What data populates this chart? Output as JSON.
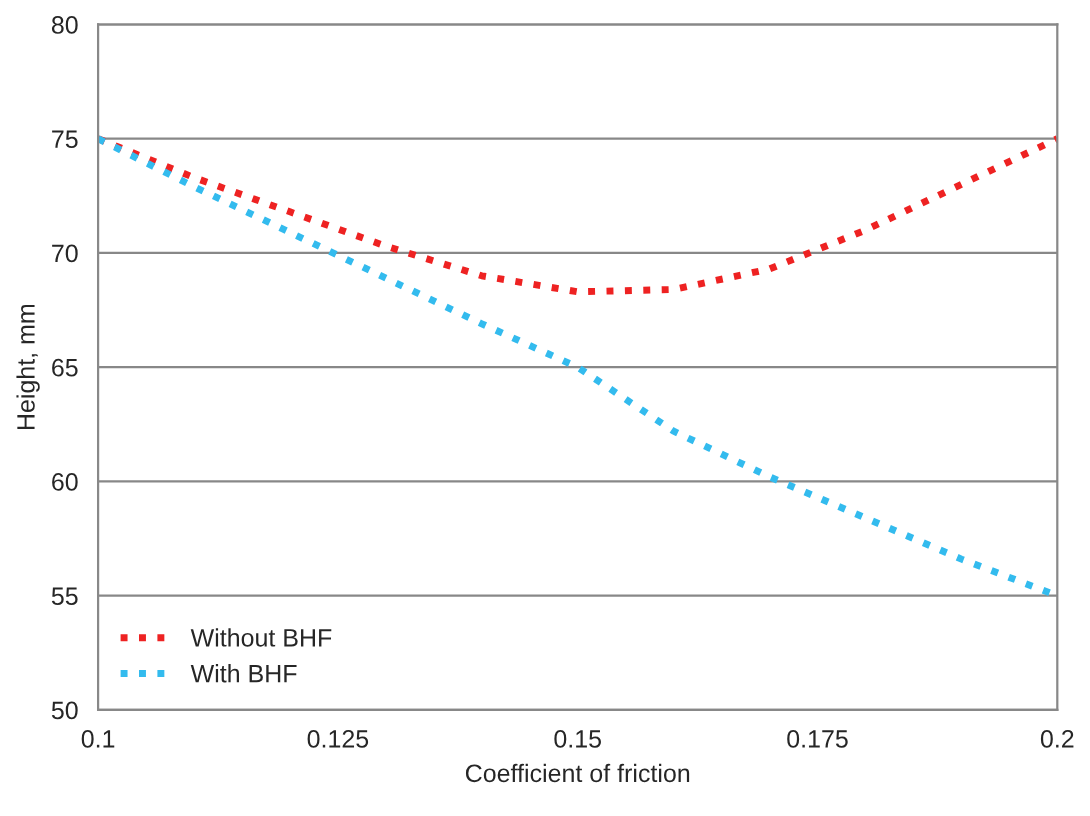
{
  "chart_data": {
    "type": "line",
    "xlabel": "Coefficient of friction",
    "ylabel": "Height, mm",
    "x": [
      0.1,
      0.11,
      0.12,
      0.13,
      0.14,
      0.15,
      0.16,
      0.17,
      0.18,
      0.19,
      0.2
    ],
    "series": [
      {
        "name": "Without BHF",
        "color": "#ee2222",
        "values": [
          75,
          73.3,
          71.8,
          70.3,
          69.0,
          68.3,
          68.4,
          69.3,
          71.0,
          73.0,
          75
        ]
      },
      {
        "name": "With BHF",
        "color": "#33bbee",
        "values": [
          75,
          72.9,
          70.9,
          68.9,
          66.9,
          65.0,
          62.2,
          60.2,
          58.4,
          56.6,
          55
        ]
      }
    ],
    "xlim": [
      0.1,
      0.2
    ],
    "xticks": [
      0.1,
      0.125,
      0.15,
      0.175,
      0.2
    ],
    "ylim": [
      50,
      80
    ],
    "yticks": [
      50,
      55,
      60,
      65,
      70,
      75,
      80
    ],
    "grid": "y",
    "legend": "lower left",
    "marker": "none",
    "line_style": "dotted"
  }
}
